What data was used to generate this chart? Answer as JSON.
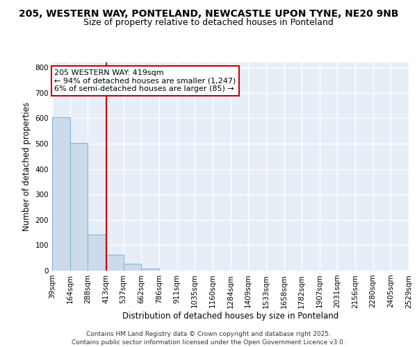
{
  "title_line1": "205, WESTERN WAY, PONTELAND, NEWCASTLE UPON TYNE, NE20 9NB",
  "title_line2": "Size of property relative to detached houses in Ponteland",
  "xlabel": "Distribution of detached houses by size in Ponteland",
  "ylabel": "Number of detached properties",
  "bar_color": "#ccdaeb",
  "bar_edge_color": "#7aafd4",
  "bin_edges": [
    39,
    164,
    288,
    413,
    537,
    662,
    786,
    911,
    1035,
    1160,
    1284,
    1409,
    1533,
    1658,
    1782,
    1907,
    2031,
    2156,
    2280,
    2405,
    2529
  ],
  "bar_heights": [
    604,
    503,
    143,
    62,
    27,
    8,
    0,
    0,
    0,
    0,
    0,
    0,
    0,
    0,
    0,
    0,
    0,
    0,
    0,
    0
  ],
  "red_line_x": 419,
  "annotation_line1": "205 WESTERN WAY: 419sqm",
  "annotation_line2": "← 94% of detached houses are smaller (1,247)",
  "annotation_line3": "6% of semi-detached houses are larger (85) →",
  "annotation_box_color": "white",
  "annotation_box_edge_color": "#cc0000",
  "red_line_color": "#cc0000",
  "ylim": [
    0,
    820
  ],
  "yticks": [
    0,
    100,
    200,
    300,
    400,
    500,
    600,
    700,
    800
  ],
  "background_color": "#e8eef8",
  "grid_color": "white",
  "footer_text": "Contains HM Land Registry data © Crown copyright and database right 2025.\nContains public sector information licensed under the Open Government Licence v3.0.",
  "title_fontsize": 10,
  "subtitle_fontsize": 9,
  "axis_label_fontsize": 8.5,
  "tick_fontsize": 7.5,
  "annotation_fontsize": 8,
  "footer_fontsize": 6.5
}
